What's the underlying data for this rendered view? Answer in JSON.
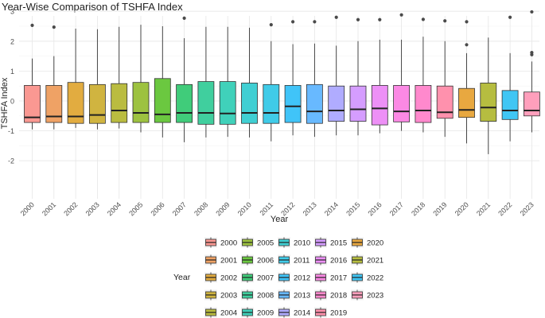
{
  "chart_data": {
    "type": "boxplot",
    "title": "Year-Wise Comparison of TSHFA Index",
    "xlabel": "Year",
    "ylabel": "TSHFA Index",
    "ylim": [
      -2.1,
      3.2
    ],
    "yticks": [
      -2,
      -1,
      0,
      1,
      2,
      3
    ],
    "grid": true,
    "legend": {
      "title": "Year",
      "position": "bottom",
      "columns": 5
    },
    "series": [
      {
        "name": "2000",
        "color": "#F8766D",
        "whisker_low": -0.95,
        "q1": -0.72,
        "median": -0.55,
        "q3": 0.52,
        "whisker_high": 1.42,
        "outliers": [
          2.53
        ]
      },
      {
        "name": "2001",
        "color": "#EA8331",
        "whisker_low": -0.95,
        "q1": -0.72,
        "median": -0.52,
        "q3": 0.52,
        "whisker_high": 1.5,
        "outliers": [
          2.47
        ]
      },
      {
        "name": "2002",
        "color": "#D89000",
        "whisker_low": -0.9,
        "q1": -0.75,
        "median": -0.52,
        "q3": 0.62,
        "whisker_high": 2.42,
        "outliers": []
      },
      {
        "name": "2003",
        "color": "#C09B00",
        "whisker_low": -0.95,
        "q1": -0.75,
        "median": -0.47,
        "q3": 0.55,
        "whisker_high": 2.4,
        "outliers": []
      },
      {
        "name": "2004",
        "color": "#A3A500",
        "whisker_low": -0.92,
        "q1": -0.72,
        "median": -0.32,
        "q3": 0.58,
        "whisker_high": 2.48,
        "outliers": []
      },
      {
        "name": "2005",
        "color": "#7CAE00",
        "whisker_low": -1.05,
        "q1": -0.72,
        "median": -0.4,
        "q3": 0.62,
        "whisker_high": 2.55,
        "outliers": []
      },
      {
        "name": "2006",
        "color": "#39B600",
        "whisker_low": -1.22,
        "q1": -0.72,
        "median": -0.45,
        "q3": 0.75,
        "whisker_high": 2.5,
        "outliers": []
      },
      {
        "name": "2007",
        "color": "#00BB4E",
        "whisker_low": -1.38,
        "q1": -0.72,
        "median": -0.4,
        "q3": 0.55,
        "whisker_high": 2.1,
        "outliers": [
          2.77
        ]
      },
      {
        "name": "2008",
        "color": "#00BF7D",
        "whisker_low": -1.22,
        "q1": -0.78,
        "median": -0.4,
        "q3": 0.65,
        "whisker_high": 2.48,
        "outliers": []
      },
      {
        "name": "2009",
        "color": "#00C1A3",
        "whisker_low": -1.2,
        "q1": -0.78,
        "median": -0.42,
        "q3": 0.65,
        "whisker_high": 2.48,
        "outliers": []
      },
      {
        "name": "2010",
        "color": "#00BFC4",
        "whisker_low": -1.22,
        "q1": -0.75,
        "median": -0.4,
        "q3": 0.6,
        "whisker_high": 2.45,
        "outliers": []
      },
      {
        "name": "2011",
        "color": "#00BAE0",
        "whisker_low": -1.35,
        "q1": -0.75,
        "median": -0.4,
        "q3": 0.55,
        "whisker_high": 2.0,
        "outliers": [
          2.55
        ]
      },
      {
        "name": "2012",
        "color": "#00B0F6",
        "whisker_low": -1.15,
        "q1": -0.72,
        "median": -0.18,
        "q3": 0.52,
        "whisker_high": 1.9,
        "outliers": [
          2.65
        ]
      },
      {
        "name": "2013",
        "color": "#35A2FF",
        "whisker_low": -1.2,
        "q1": -0.75,
        "median": -0.35,
        "q3": 0.55,
        "whisker_high": 1.92,
        "outliers": [
          2.65
        ]
      },
      {
        "name": "2014",
        "color": "#9590FF",
        "whisker_low": -1.15,
        "q1": -0.68,
        "median": -0.32,
        "q3": 0.5,
        "whisker_high": 1.85,
        "outliers": [
          2.8
        ]
      },
      {
        "name": "2015",
        "color": "#C77CFF",
        "whisker_low": -1.15,
        "q1": -0.68,
        "median": -0.28,
        "q3": 0.5,
        "whisker_high": 2.0,
        "outliers": [
          2.72
        ]
      },
      {
        "name": "2016",
        "color": "#E76BF3",
        "whisker_low": -1.08,
        "q1": -0.8,
        "median": -0.25,
        "q3": 0.52,
        "whisker_high": 2.05,
        "outliers": [
          2.72
        ]
      },
      {
        "name": "2017",
        "color": "#FA62DB",
        "whisker_low": -1.0,
        "q1": -0.7,
        "median": -0.35,
        "q3": 0.52,
        "whisker_high": 2.05,
        "outliers": [
          2.88
        ]
      },
      {
        "name": "2018",
        "color": "#FF62BC",
        "whisker_low": -1.05,
        "q1": -0.72,
        "median": -0.32,
        "q3": 0.52,
        "whisker_high": 2.15,
        "outliers": [
          2.73
        ]
      },
      {
        "name": "2019",
        "color": "#FF6C91",
        "whisker_low": -1.2,
        "q1": -0.58,
        "median": -0.38,
        "q3": 0.5,
        "whisker_high": 2.0,
        "outliers": [
          2.68
        ]
      },
      {
        "name": "2020",
        "color": "#E08B00",
        "whisker_low": -1.42,
        "q1": -0.55,
        "median": -0.3,
        "q3": 0.42,
        "whisker_high": 1.6,
        "outliers": [
          1.88,
          2.65
        ]
      },
      {
        "name": "2021",
        "color": "#9EA700",
        "whisker_low": -1.78,
        "q1": -0.68,
        "median": -0.22,
        "q3": 0.6,
        "whisker_high": 2.12,
        "outliers": []
      },
      {
        "name": "2022",
        "color": "#00B3F0",
        "whisker_low": -1.35,
        "q1": -0.62,
        "median": -0.32,
        "q3": 0.35,
        "whisker_high": 1.6,
        "outliers": [
          2.8
        ]
      },
      {
        "name": "2023",
        "color": "#FF7FA5",
        "whisker_low": -1.05,
        "q1": -0.5,
        "median": -0.32,
        "q3": 0.3,
        "whisker_high": 1.32,
        "outliers": [
          1.55,
          1.62,
          2.98
        ]
      }
    ]
  }
}
